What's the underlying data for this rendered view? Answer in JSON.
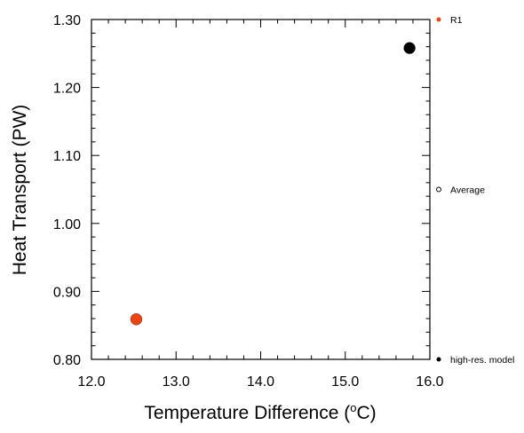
{
  "chart_data": {
    "type": "scatter",
    "xlabel": "Temperature Difference (",
    "xlabel_degree": "o",
    "xlabel_unit": "C)",
    "ylabel": "Heat Transport (PW)",
    "xlim": [
      12.0,
      16.0
    ],
    "ylim": [
      0.8,
      1.3
    ],
    "x_ticks": [
      "12.0",
      "13.0",
      "14.0",
      "15.0",
      "16.0"
    ],
    "y_ticks": [
      "0.80",
      "0.90",
      "1.00",
      "1.10",
      "1.20",
      "1.30"
    ],
    "grid": false,
    "legend_position": "right",
    "series": [
      {
        "name": "R1",
        "color": "#ee4411",
        "marker": "filled-circle",
        "x": [
          12.53
        ],
        "y": [
          0.859
        ]
      },
      {
        "name": "high-res. model",
        "color": "#000000",
        "marker": "filled-circle",
        "x": [
          15.76
        ],
        "y": [
          1.258
        ]
      }
    ],
    "legend": [
      {
        "label": "R1",
        "color": "#ee4411",
        "marker": "filled-circle"
      },
      {
        "label": "Average",
        "color": "#000000",
        "marker": "open-circle"
      },
      {
        "label": "high-res. model",
        "color": "#000000",
        "marker": "filled-circle"
      }
    ]
  }
}
